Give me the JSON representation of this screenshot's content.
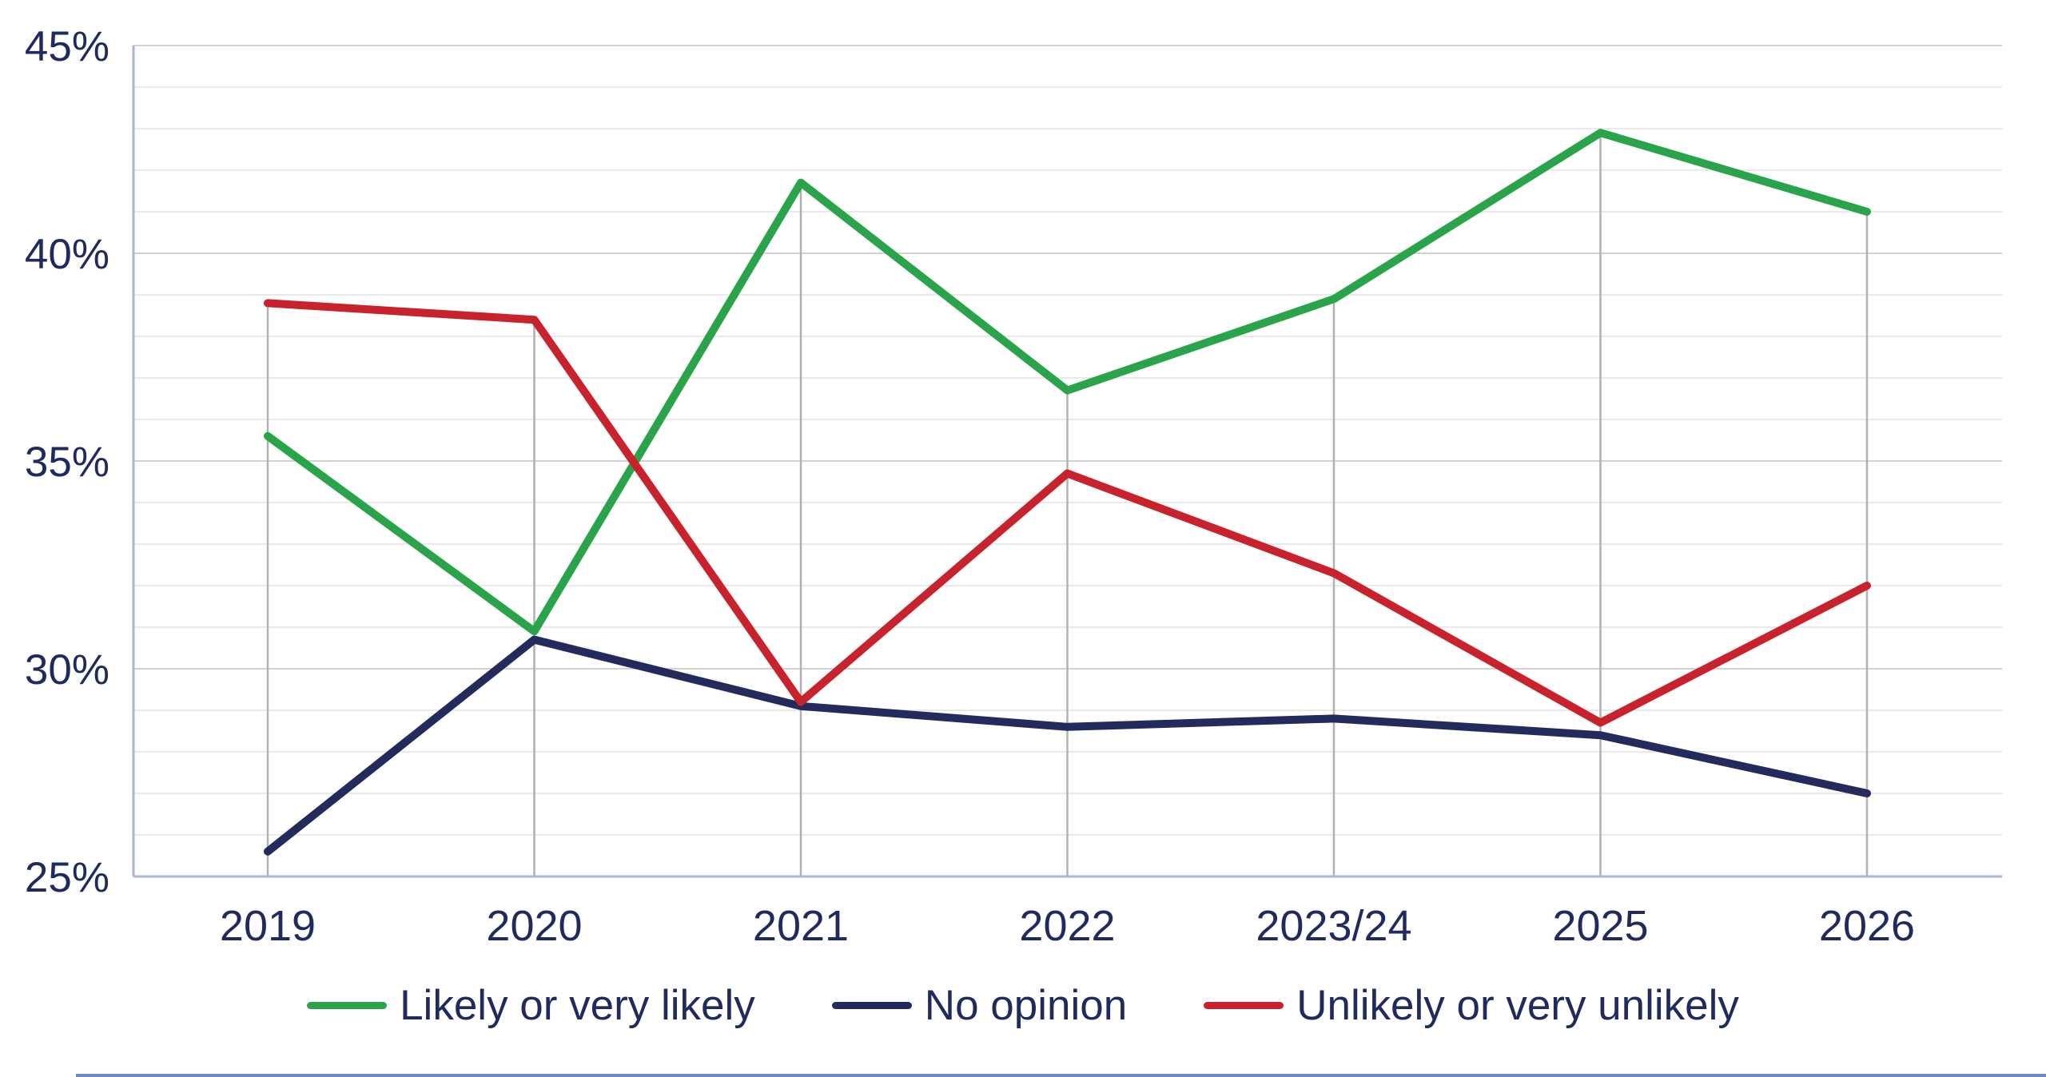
{
  "chart_data": {
    "type": "line",
    "title": "",
    "categories": [
      "2019",
      "2020",
      "2021",
      "2022",
      "2023/24",
      "2025",
      "2026"
    ],
    "series": [
      {
        "name": "Likely or very likely",
        "color": "#2aa44a",
        "values": [
          35.6,
          30.9,
          41.7,
          36.7,
          38.9,
          42.9,
          41.0
        ]
      },
      {
        "name": "No opinion",
        "color": "#232a5c",
        "values": [
          25.6,
          30.7,
          29.1,
          28.6,
          28.8,
          28.4,
          27.0
        ]
      },
      {
        "name": "Unlikely or very unlikely",
        "color": "#c8232c",
        "values": [
          38.8,
          38.4,
          29.2,
          34.7,
          32.3,
          28.7,
          32.0
        ]
      }
    ],
    "xlabel": "",
    "ylabel": "",
    "ylim": [
      25,
      45
    ],
    "yticks_major": [
      25,
      30,
      35,
      40,
      45
    ],
    "ytick_labels": [
      "25%",
      "30%",
      "35%",
      "40%",
      "45%"
    ],
    "minor_grid_step_percent": 1,
    "legend_position": "bottom",
    "grid": {
      "horizontal_minor": true,
      "horizontal_major": true,
      "vertical_droplines_to_max_point": true
    }
  },
  "styles": {
    "axis_color": "#a9b6da",
    "major_grid_color": "#d2d2d2",
    "minor_grid_color": "#e9e9e9",
    "dropline_color": "#b1b1b1",
    "label_color": "#1f2a5e",
    "series_stroke_width": 10,
    "bottom_rule_color": "#6e88c3"
  }
}
